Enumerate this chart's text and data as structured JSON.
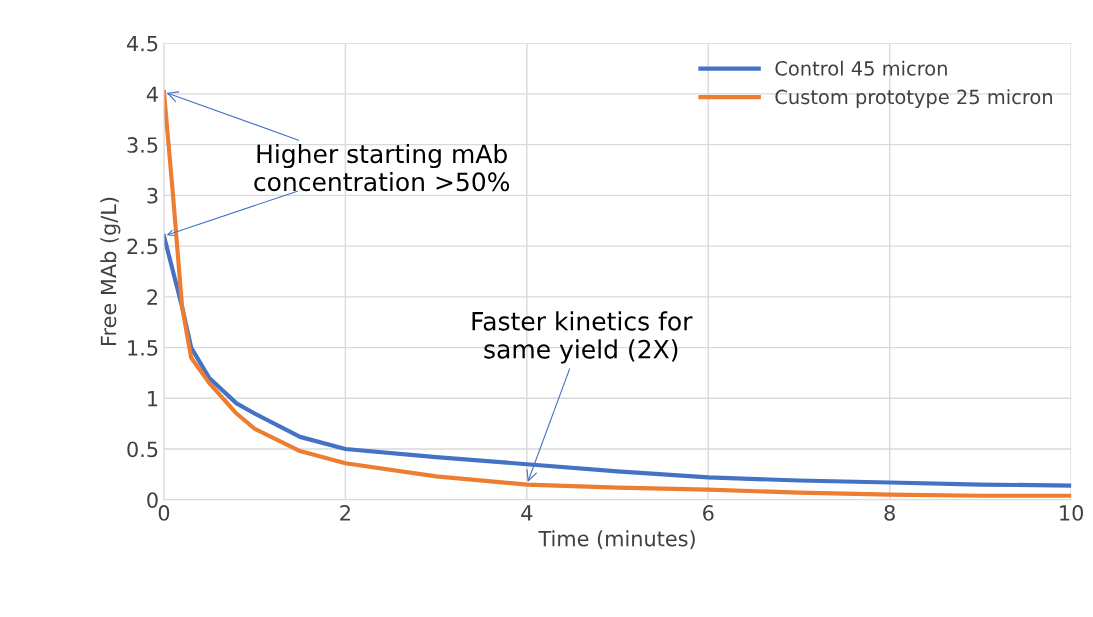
{
  "chart_data": {
    "type": "line",
    "xlabel": "Time (minutes)",
    "ylabel": "Free MAb (g/L)",
    "xlim": [
      0,
      10
    ],
    "ylim": [
      0,
      4.5
    ],
    "xticks": [
      0,
      2,
      4,
      6,
      8,
      10
    ],
    "yticks": [
      0,
      0.5,
      1,
      1.5,
      2,
      2.5,
      3,
      3.5,
      4,
      4.5
    ],
    "grid": true,
    "legend": "top right",
    "marker": "none",
    "line_style": "solid",
    "series": [
      {
        "name": "Control 45 micron",
        "color": "#4472c4",
        "x": [
          0,
          0.2,
          0.3,
          0.5,
          0.8,
          1,
          1.5,
          2,
          3,
          4,
          5,
          6,
          7,
          8,
          9,
          10
        ],
        "values": [
          2.6,
          1.9,
          1.5,
          1.2,
          0.95,
          0.85,
          0.62,
          0.5,
          0.42,
          0.35,
          0.28,
          0.22,
          0.19,
          0.17,
          0.15,
          0.14
        ]
      },
      {
        "name": "Custom prototype 25 micron",
        "color": "#ed7d31",
        "x": [
          0,
          0.1,
          0.2,
          0.3,
          0.5,
          0.8,
          1,
          1.5,
          2,
          3,
          4,
          5,
          6,
          7,
          8,
          9,
          10
        ],
        "values": [
          4.02,
          3.0,
          1.9,
          1.4,
          1.15,
          0.85,
          0.7,
          0.48,
          0.36,
          0.23,
          0.15,
          0.12,
          0.1,
          0.07,
          0.05,
          0.04,
          0.04
        ]
      }
    ],
    "annotations": [
      {
        "text": "Higher starting mAb\nconcentration >50%",
        "x": 0,
        "y": 4.02
      },
      {
        "text": "Faster kinetics for\nsame yield (2X)",
        "x": 4,
        "y": 0.15
      }
    ]
  }
}
